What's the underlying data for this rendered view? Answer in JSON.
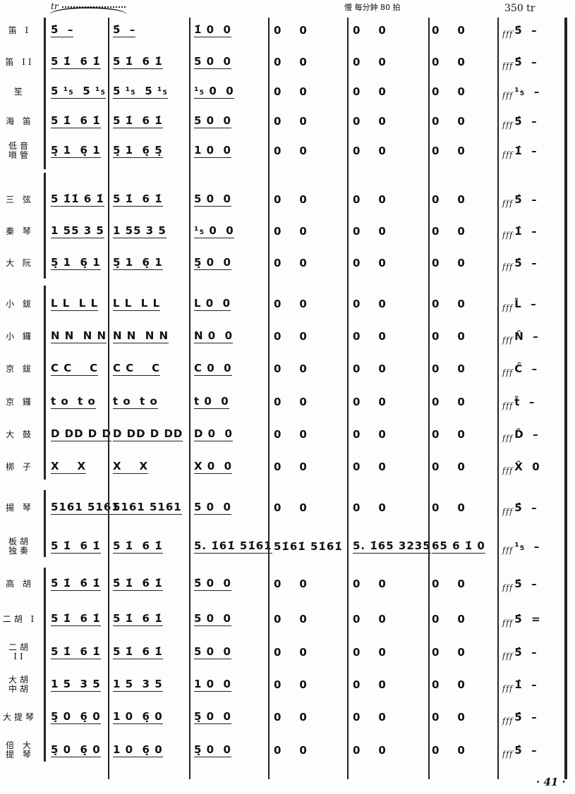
{
  "header": {
    "trill": "tr",
    "tempo": "慢  每分鈡 80 拍",
    "rehearsal": "350 tr"
  },
  "dynamic": "fff",
  "rows": [
    {
      "label": "笛 I",
      "measures": [
        "5̇  –",
        "5̇  –",
        "1̇ 0  0",
        "0    0",
        "0    0",
        "0    0",
        "5̇  –"
      ]
    },
    {
      "label": "笛 II",
      "measures": [
        "5 1̇  6 1̇",
        "5 1̇  6 1̇",
        "5 0  0",
        "0    0",
        "0    0",
        "0    0",
        "5̂  –"
      ]
    },
    {
      "label": "笙",
      "measures": [
        "5 ¹₅  5 ¹₅",
        "5 ¹₅  5 ¹₅",
        "¹₅ 0  0",
        "0    0",
        "0    0",
        "0    0",
        "¹₅  –"
      ]
    },
    {
      "label": "海 笛",
      "measures": [
        "5 1̇  6 1̇",
        "5 1̇  6 1̇",
        "5 0  0",
        "0    0",
        "0    0",
        "0    0",
        "5̂  –"
      ]
    },
    {
      "label": "低音 嗩管",
      "measures": [
        "5̣ 1  6̣ 1",
        "5̣ 1  6̣ 5̣",
        "1 0  0",
        "0    0",
        "0    0",
        "0    0",
        "1̂  –"
      ]
    },
    {
      "label": "三 弦",
      "measures": [
        "5 1̇1̇ 6 1̇",
        "5 1̇  6 1̇",
        "5 0  0",
        "0    0",
        "0    0",
        "0    0",
        "5̂  –"
      ]
    },
    {
      "label": "秦 琴",
      "measures": [
        "1 55 3 5",
        "1 55 3 5",
        "¹₅ 0  0",
        "0    0",
        "0    0",
        "0    0",
        "1̂  –"
      ]
    },
    {
      "label": "大 阮",
      "measures": [
        "5̣ 1  6̣ 1",
        "5̣ 1  6̣ 1",
        "5̣ 0  0",
        "0    0",
        "0    0",
        "0    0",
        "5̂  –"
      ]
    },
    {
      "label": "小 鈸",
      "measures": [
        "L L  L L",
        "L L  L L",
        "L 0  0",
        "0    0",
        "0    0",
        "0    0",
        "L̂  –"
      ]
    },
    {
      "label": "小 鑼",
      "measures": [
        "N N  N N",
        "N N  N N",
        "N 0  0",
        "0    0",
        "0    0",
        "0    0",
        "N̂  –"
      ]
    },
    {
      "label": "京 鈸",
      "measures": [
        "C C    C",
        "C C    C",
        "C 0  0",
        "0    0",
        "0    0",
        "0    0",
        "Ĉ  –"
      ]
    },
    {
      "label": "京 鑼",
      "measures": [
        "t o  t o",
        "t o  t o",
        "t 0  0",
        "0    0",
        "0    0",
        "0    0",
        "t̂  –"
      ]
    },
    {
      "label": "大 鼓",
      "measures": [
        "D DD D D",
        "D DD D DD",
        "D 0  0",
        "0    0",
        "0    0",
        "0    0",
        "D̂  –"
      ]
    },
    {
      "label": "梆 子",
      "measures": [
        "X    X",
        "X    X",
        "X 0  0",
        "0    0",
        "0    0",
        "0    0",
        "X̂  0"
      ]
    },
    {
      "label": "揚 琴",
      "measures": [
        "5161 5161",
        "5161 5161",
        "5 0  0",
        "0    0",
        "0    0",
        "0    0",
        "5̂  –"
      ]
    },
    {
      "label": "板胡 独奏",
      "measures": [
        "5 1̇  6 1̇",
        "5 1̇  6 1̇",
        "5. 1̇61̇ 51̇61̇",
        "51̇61̇ 51̇61̇",
        "5. 1̇65 3235",
        "65 6 1̇ 0",
        "¹₅  –"
      ]
    },
    {
      "label": "高 胡",
      "measures": [
        "5̇ 1̇  6̇ 1̇",
        "5̇ 1̇  6̇ 1̇",
        "5̇ 0  0",
        "0    0",
        "0    0",
        "0    0",
        "5̇  –"
      ]
    },
    {
      "label": "二胡 I",
      "measures": [
        "5 1̇  6 1̇",
        "5 1̇  6 1̇",
        "5 0  0",
        "0    0",
        "0    0",
        "0    0",
        "5̂  ="
      ]
    },
    {
      "label": "二胡 II",
      "measures": [
        "5 1̇  6 1̇",
        "5 1̇  6 1̇",
        "5 0  0",
        "0    0",
        "0    0",
        "0    0",
        "5̂  –"
      ]
    },
    {
      "label": "大胡 中胡",
      "measures": [
        "1 5  3 5",
        "1 5  3 5",
        "1 0  0",
        "0    0",
        "0    0",
        "0    0",
        "1̂  –"
      ]
    },
    {
      "label": "大提琴",
      "measures": [
        "5̣ 0  6̣ 0",
        "1 0  6̣ 0",
        "5̣ 0  0",
        "0    0",
        "0    0",
        "0    0",
        "5̂  –"
      ]
    },
    {
      "label": "倍 大 提 琴",
      "measures": [
        "5̣ 0  6̣ 0",
        "1 0  6̣ 0",
        "5̣ 0  0",
        "0    0",
        "0    0",
        "0    0",
        "5̂  –"
      ]
    }
  ],
  "page_number": "· 41 ·"
}
